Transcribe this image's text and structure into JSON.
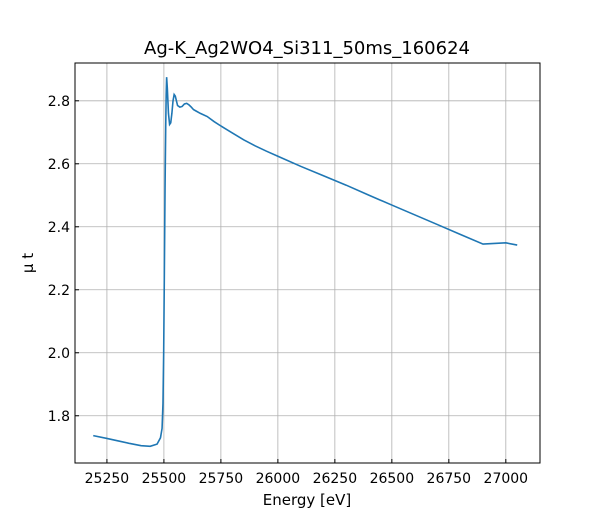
{
  "chart_data": {
    "type": "line",
    "title": "Ag-K_Ag2WO4_Si311_50ms_160624",
    "xlabel": "Energy [eV]",
    "ylabel": "μ t",
    "xlim": [
      25110,
      27150
    ],
    "ylim": [
      1.65,
      2.92
    ],
    "x_ticks": [
      25250,
      25500,
      25750,
      26000,
      26250,
      26500,
      26750,
      27000
    ],
    "x_tick_labels": [
      "25250",
      "25500",
      "25750",
      "26000",
      "26250",
      "26500",
      "26750",
      "27000"
    ],
    "y_ticks": [
      1.8,
      2.0,
      2.2,
      2.4,
      2.6,
      2.8
    ],
    "y_tick_labels": [
      "1.8",
      "2.0",
      "2.2",
      "2.4",
      "2.6",
      "2.8"
    ],
    "grid": true,
    "line_color": "#1f77b4",
    "series": [
      {
        "x": [
          25190,
          25250,
          25300,
          25350,
          25400,
          25440,
          25470,
          25485,
          25492,
          25496,
          25499,
          25502,
          25505,
          25508,
          25510,
          25512,
          25515,
          25520,
          25525,
          25530,
          25535,
          25540,
          25545,
          25550,
          25555,
          25560,
          25570,
          25580,
          25590,
          25600,
          25610,
          25620,
          25630,
          25640,
          25660,
          25690,
          25720,
          25750,
          25800,
          25850,
          25900,
          25950,
          26000,
          26100,
          26200,
          26300,
          26400,
          26500,
          26600,
          26700,
          26800,
          26900,
          27000,
          27050
        ],
        "y": [
          1.737,
          1.728,
          1.72,
          1.712,
          1.705,
          1.703,
          1.71,
          1.73,
          1.76,
          1.84,
          2.0,
          2.25,
          2.52,
          2.72,
          2.82,
          2.875,
          2.84,
          2.76,
          2.725,
          2.73,
          2.76,
          2.8,
          2.82,
          2.815,
          2.8,
          2.785,
          2.78,
          2.782,
          2.79,
          2.792,
          2.787,
          2.78,
          2.772,
          2.768,
          2.76,
          2.75,
          2.734,
          2.72,
          2.698,
          2.676,
          2.657,
          2.64,
          2.624,
          2.592,
          2.562,
          2.532,
          2.5,
          2.469,
          2.438,
          2.407,
          2.376,
          2.345,
          2.349,
          2.342
        ]
      }
    ]
  }
}
